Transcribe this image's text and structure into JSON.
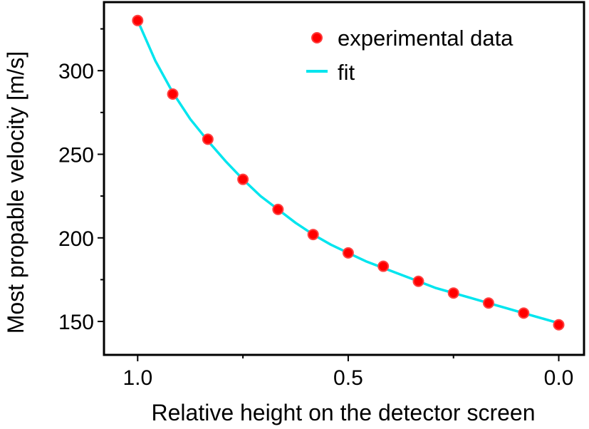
{
  "chart_data": {
    "type": "scatter",
    "title": "",
    "xlabel": "Relative height on the detector screen",
    "ylabel": "Most propable velocity [m/s]",
    "xlim": [
      1.08,
      -0.06
    ],
    "ylim": [
      130,
      341
    ],
    "x_ticks": [
      1.0,
      0.5,
      0.0
    ],
    "x_tick_labels": [
      "1.0",
      "0.5",
      "0.0"
    ],
    "y_ticks": [
      150,
      200,
      250,
      300
    ],
    "y_tick_labels": [
      "150",
      "200",
      "250",
      "300"
    ],
    "grid": false,
    "legend_position": "top-right",
    "series": [
      {
        "name": "experimental data",
        "kind": "scatter",
        "color": "#ff0000",
        "x": [
          1.0,
          0.9167,
          0.8333,
          0.75,
          0.6667,
          0.5833,
          0.5,
          0.4167,
          0.3333,
          0.25,
          0.1667,
          0.0833,
          0.0
        ],
        "y": [
          330,
          286,
          259,
          235,
          217,
          202,
          191,
          183,
          174,
          167,
          161,
          155,
          148
        ]
      },
      {
        "name": "fit",
        "kind": "line",
        "color": "#00e5ee",
        "x": [
          1.0,
          0.9583,
          0.9167,
          0.875,
          0.8333,
          0.7917,
          0.75,
          0.7083,
          0.6667,
          0.625,
          0.5833,
          0.5417,
          0.5,
          0.4583,
          0.4167,
          0.375,
          0.3333,
          0.2917,
          0.25,
          0.2083,
          0.1667,
          0.125,
          0.0833,
          0.0417,
          0.0
        ],
        "y": [
          330,
          306,
          287,
          271,
          258,
          246,
          235,
          225,
          217,
          209,
          202,
          196,
          191,
          186,
          182,
          178,
          174,
          170,
          167,
          164,
          161,
          158,
          155,
          152,
          149
        ]
      }
    ]
  }
}
